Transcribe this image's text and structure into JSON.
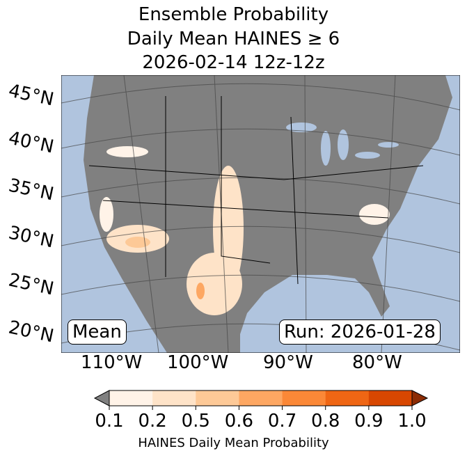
{
  "title": {
    "line1": "Ensemble Probability",
    "line2": "Daily Mean HAINES ≥ 6",
    "line3": "2026-02-14 12z-12z"
  },
  "map": {
    "lat_labels": [
      "45°N",
      "40°N",
      "35°N",
      "30°N",
      "25°N",
      "20°N"
    ],
    "lon_labels": [
      "110°W",
      "100°W",
      "90°W",
      "80°W"
    ],
    "mean_label": "Mean",
    "run_label": "Run: 2026-01-28",
    "colors": {
      "ocean": "#b0c4de",
      "land": "#808080"
    }
  },
  "colorbar": {
    "ticks": [
      "0.1",
      "0.2",
      "0.5",
      "0.6",
      "0.7",
      "0.8",
      "0.9",
      "1.0"
    ],
    "label": "HAINES Daily Mean Probability",
    "colors": [
      "#fff3e8",
      "#fee3c8",
      "#fdc997",
      "#fda762",
      "#fb8837",
      "#ef6614",
      "#d84701"
    ],
    "under": "#808080",
    "over": "#8c2c04"
  }
}
